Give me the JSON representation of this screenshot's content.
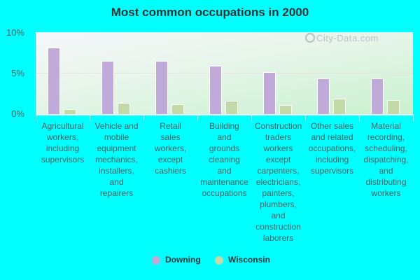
{
  "chart_data": {
    "type": "bar",
    "title": "Most common occupations in 2000",
    "xlabel": "",
    "ylabel": "",
    "ylim": [
      0,
      10
    ],
    "yticks": [
      "0%",
      "5%",
      "10%"
    ],
    "grid": true,
    "legend_position": "bottom",
    "categories": [
      "Agricultural workers, including supervisors",
      "Vehicle and mobile equipment mechanics, installers, and repairers",
      "Retail sales workers, except cashiers",
      "Building and grounds cleaning and maintenance occupations",
      "Construction traders workers except carpenters, electricians, painters, plumbers, and construction laborers",
      "Other sales and related occupations, including supervisors",
      "Material recording, scheduling, dispatching, and distributing workers"
    ],
    "series": [
      {
        "name": "Downing",
        "color": "#c0aad9",
        "values": [
          8.1,
          6.5,
          6.5,
          5.9,
          5.1,
          4.4,
          4.4
        ]
      },
      {
        "name": "Wisconsin",
        "color": "#c4d9a8",
        "values": [
          0.6,
          1.4,
          1.2,
          1.6,
          1.1,
          1.9,
          1.7
        ]
      }
    ]
  },
  "watermark": "City-Data.com",
  "legend": [
    {
      "label": "Downing",
      "color": "#c0aad9"
    },
    {
      "label": "Wisconsin",
      "color": "#c4d9a8"
    }
  ]
}
